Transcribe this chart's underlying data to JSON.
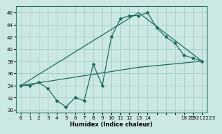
{
  "xlabel": "Humidex (Indice chaleur)",
  "bg_color": "#cce8e4",
  "grid_color": "#aacfca",
  "line_color": "#1a6b5e",
  "xlim": [
    -0.5,
    20.5
  ],
  "ylim": [
    29.5,
    47
  ],
  "x_positions": [
    0,
    1,
    2,
    3,
    4,
    5,
    6,
    7,
    8,
    9,
    10,
    11,
    12,
    13,
    14,
    15,
    16,
    17,
    18,
    19,
    20
  ],
  "x_labels": [
    "0",
    "1",
    "2",
    "3",
    "4",
    "5",
    "6",
    "7",
    "8",
    "9",
    "10",
    "11",
    "12",
    "13",
    "14",
    "",
    "",
    "",
    "18",
    "19",
    "20 212223"
  ],
  "yticks": [
    30,
    32,
    34,
    36,
    38,
    40,
    42,
    44,
    46
  ],
  "line1_x": [
    0,
    1,
    2,
    3,
    4,
    5,
    6,
    7,
    8,
    9,
    10,
    11,
    12,
    13,
    14,
    15,
    16,
    17,
    18,
    19,
    20
  ],
  "line1_y": [
    34,
    34,
    34.5,
    33.5,
    31.5,
    30.5,
    32,
    31.5,
    37.5,
    34,
    42,
    45,
    45.5,
    45.5,
    46,
    43.5,
    42,
    41,
    39,
    38.5,
    38
  ],
  "line2_x": [
    0,
    13,
    20
  ],
  "line2_y": [
    34,
    46,
    38
  ],
  "line3_x": [
    0,
    13,
    20
  ],
  "line3_y": [
    34,
    37,
    38
  ]
}
